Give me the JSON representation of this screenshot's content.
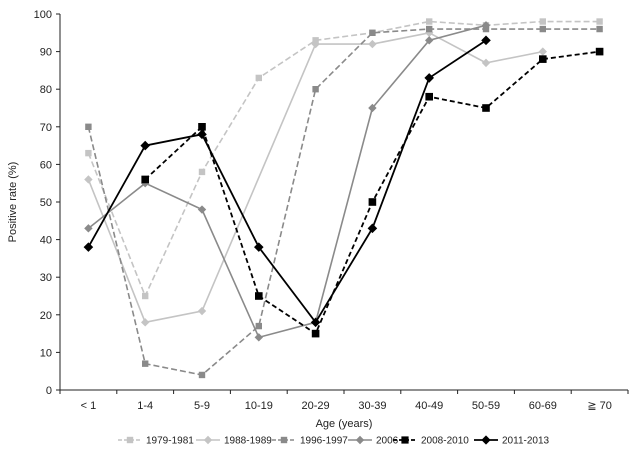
{
  "chart_data": {
    "type": "line",
    "categories": [
      "< 1",
      "1-4",
      "5-9",
      "10-19",
      "20-29",
      "30-39",
      "40-49",
      "50-59",
      "60-69",
      "≧ 70"
    ],
    "xlabel": "Age (years)",
    "ylabel": "Positive rate (%)",
    "ylim": [
      0,
      100
    ],
    "yticks": [
      0,
      10,
      20,
      30,
      40,
      50,
      60,
      70,
      80,
      90,
      100
    ],
    "grid": false,
    "legend_position": "bottom",
    "series": [
      {
        "name": "1979-1981",
        "color": "#c4c4c4",
        "dash": "dashed",
        "marker": "square",
        "values": [
          63,
          25,
          58,
          83,
          93,
          95,
          98,
          97,
          98,
          98
        ]
      },
      {
        "name": "1988-1989",
        "color": "#c4c4c4",
        "dash": "solid",
        "marker": "diamond",
        "values": [
          56,
          18,
          21,
          null,
          92,
          92,
          95,
          87,
          90,
          null
        ]
      },
      {
        "name": "1996-1997",
        "color": "#8a8a8a",
        "dash": "dashed",
        "marker": "square",
        "values": [
          70,
          7,
          4,
          17,
          80,
          95,
          96,
          96,
          96,
          96
        ]
      },
      {
        "name": "2006",
        "color": "#8a8a8a",
        "dash": "solid",
        "marker": "diamond",
        "values": [
          43,
          55,
          48,
          14,
          18,
          75,
          93,
          97,
          null,
          null
        ]
      },
      {
        "name": "2008-2010",
        "color": "#000000",
        "dash": "dashed",
        "marker": "square",
        "values": [
          null,
          56,
          70,
          25,
          15,
          50,
          78,
          75,
          88,
          90
        ]
      },
      {
        "name": "2011-2013",
        "color": "#000000",
        "dash": "solid",
        "marker": "diamond",
        "values": [
          38,
          65,
          68,
          38,
          18,
          43,
          83,
          93,
          null,
          null
        ]
      }
    ]
  }
}
